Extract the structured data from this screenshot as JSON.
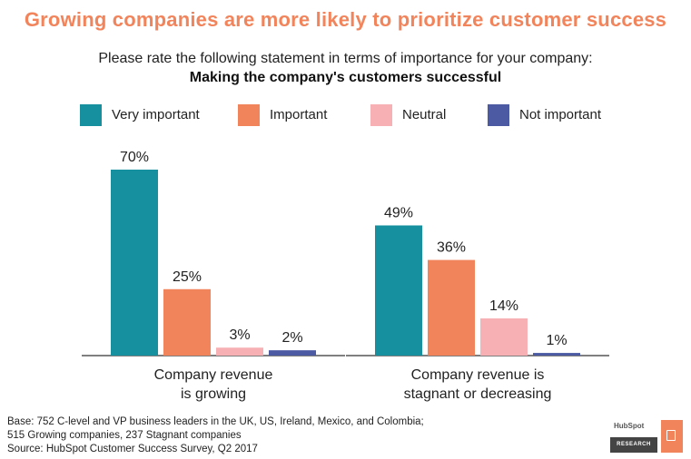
{
  "title": "Growing companies are more likely to prioritize customer success",
  "subtitle": "Please rate the following statement in terms of importance for your company:",
  "subtitle_bold": "Making the company's customers successful",
  "colors": {
    "title": "#f2845c",
    "very_important": "#16909f",
    "important": "#f2845c",
    "neutral": "#f7b0b3",
    "not_important": "#4c5aa3"
  },
  "chart_data": {
    "type": "bar",
    "categories": [
      "Company revenue is growing",
      "Company revenue is stagnant or decreasing"
    ],
    "category_lines": [
      [
        "Company revenue",
        "is growing"
      ],
      [
        "Company revenue is",
        "stagnant or decreasing"
      ]
    ],
    "series": [
      {
        "name": "Very important",
        "color": "#16909f",
        "values": [
          70,
          49
        ],
        "labels": [
          "70%",
          "49%"
        ]
      },
      {
        "name": "Important",
        "color": "#f2845c",
        "values": [
          25,
          36
        ],
        "labels": [
          "25%",
          "36%"
        ]
      },
      {
        "name": "Neutral",
        "color": "#f7b0b3",
        "values": [
          3,
          14
        ],
        "labels": [
          "3%",
          "14%"
        ]
      },
      {
        "name": "Not important",
        "color": "#4c5aa3",
        "values": [
          2,
          1
        ],
        "labels": [
          "2%",
          "1%"
        ]
      }
    ],
    "ylim": [
      0,
      100
    ],
    "grid": false,
    "legend_position": "top"
  },
  "footnote": {
    "line1": "Base: 752 C-level and VP business leaders in the UK, US, Ireland, Mexico, and Colombia;",
    "line2": "515 Growing companies, 237 Stagnant companies",
    "line3": "Source: HubSpot Customer Success Survey, Q2 2017"
  },
  "logo": {
    "brand": "HubSpot",
    "tag": "RESEARCH"
  }
}
